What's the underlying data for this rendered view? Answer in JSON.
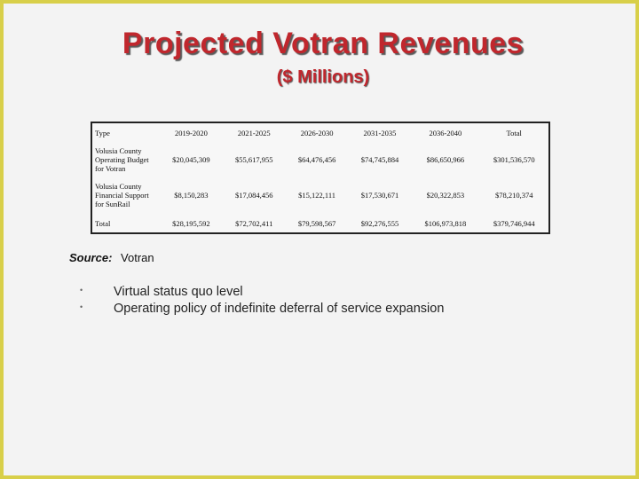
{
  "slide": {
    "title": "Projected Votran Revenues",
    "subtitle": "($ Millions)"
  },
  "table": {
    "headers": [
      "Type",
      "2019-2020",
      "2021-2025",
      "2026-2030",
      "2031-2035",
      "2036-2040",
      "Total"
    ],
    "rows": [
      [
        "Volusia County Operating Budget for Votran",
        "$20,045,309",
        "$55,617,955",
        "$64,476,456",
        "$74,745,884",
        "$86,650,966",
        "$301,536,570"
      ],
      [
        "Volusia County Financial Support for SunRail",
        "$8,150,283",
        "$17,084,456",
        "$15,122,111",
        "$17,530,671",
        "$20,322,853",
        "$78,210,374"
      ],
      [
        "Total",
        "$28,195,592",
        "$72,702,411",
        "$79,598,567",
        "$92,276,555",
        "$106,973,818",
        "$379,746,944"
      ]
    ]
  },
  "source": {
    "label": "Source:",
    "value": "Votran"
  },
  "bullets": [
    {
      "marker": "•",
      "text": "Virtual status quo level"
    },
    {
      "marker": "•",
      "text": "Operating policy of indefinite deferral of service expansion"
    }
  ],
  "colors": {
    "title": "#c0272d",
    "frame": "#d8cf49"
  }
}
